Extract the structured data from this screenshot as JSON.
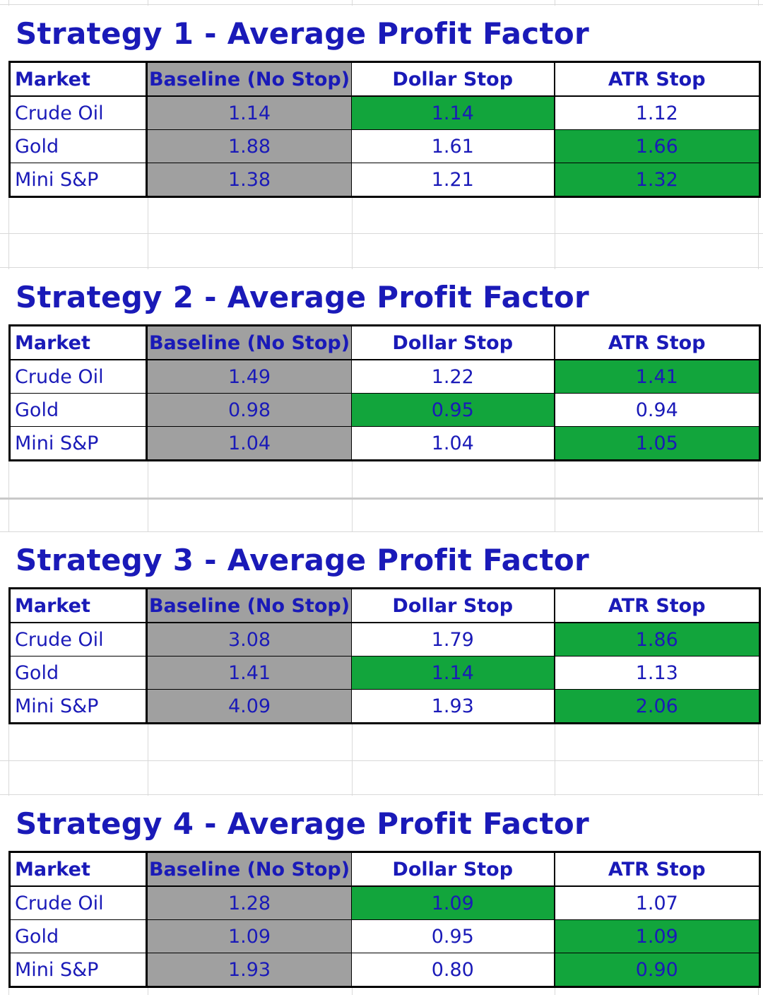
{
  "colors": {
    "title": "#1a1ab8",
    "baseline_fill": "#a0a0a0",
    "best_fill": "#12a53c"
  },
  "tables": [
    {
      "title": "Strategy 1 - Average Profit Factor",
      "headers": [
        "Market",
        "Baseline (No Stop)",
        "Dollar Stop",
        "ATR Stop"
      ],
      "rows": [
        {
          "market": "Crude Oil",
          "baseline": "1.14",
          "dollar": "1.14",
          "atr": "1.12",
          "best": "dollar"
        },
        {
          "market": "Gold",
          "baseline": "1.88",
          "dollar": "1.61",
          "atr": "1.66",
          "best": "atr"
        },
        {
          "market": "Mini S&P",
          "baseline": "1.38",
          "dollar": "1.21",
          "atr": "1.32",
          "best": "atr"
        }
      ]
    },
    {
      "title": "Strategy 2 - Average Profit Factor",
      "headers": [
        "Market",
        "Baseline (No Stop)",
        "Dollar Stop",
        "ATR Stop"
      ],
      "rows": [
        {
          "market": "Crude Oil",
          "baseline": "1.49",
          "dollar": "1.22",
          "atr": "1.41",
          "best": "atr"
        },
        {
          "market": "Gold",
          "baseline": "0.98",
          "dollar": "0.95",
          "atr": "0.94",
          "best": "dollar"
        },
        {
          "market": "Mini S&P",
          "baseline": "1.04",
          "dollar": "1.04",
          "atr": "1.05",
          "best": "atr"
        }
      ]
    },
    {
      "title": "Strategy 3 - Average Profit Factor",
      "headers": [
        "Market",
        "Baseline (No Stop)",
        "Dollar Stop",
        "ATR Stop"
      ],
      "rows": [
        {
          "market": "Crude Oil",
          "baseline": "3.08",
          "dollar": "1.79",
          "atr": "1.86",
          "best": "atr"
        },
        {
          "market": "Gold",
          "baseline": "1.41",
          "dollar": "1.14",
          "atr": "1.13",
          "best": "dollar"
        },
        {
          "market": "Mini S&P",
          "baseline": "4.09",
          "dollar": "1.93",
          "atr": "2.06",
          "best": "atr"
        }
      ]
    },
    {
      "title": "Strategy 4 - Average Profit Factor",
      "headers": [
        "Market",
        "Baseline (No Stop)",
        "Dollar Stop",
        "ATR Stop"
      ],
      "rows": [
        {
          "market": "Crude Oil",
          "baseline": "1.28",
          "dollar": "1.09",
          "atr": "1.07",
          "best": "dollar"
        },
        {
          "market": "Gold",
          "baseline": "1.09",
          "dollar": "0.95",
          "atr": "1.09",
          "best": "atr"
        },
        {
          "market": "Mini S&P",
          "baseline": "1.93",
          "dollar": "0.80",
          "atr": "0.90",
          "best": "atr"
        }
      ]
    }
  ]
}
